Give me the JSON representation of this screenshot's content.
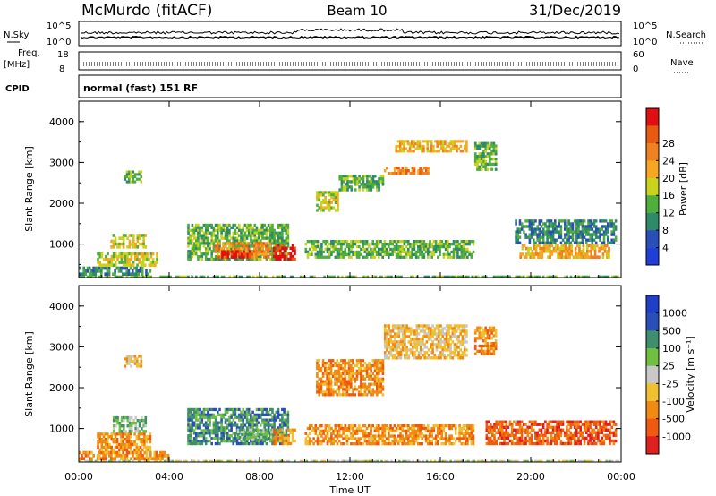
{
  "header": {
    "station": "McMurdo (fitACF)",
    "beam": "Beam 10",
    "date": "31/Dec/2019"
  },
  "strips": {
    "nsky": {
      "left_label": "N.Sky",
      "right_label": "N.Search",
      "ticks_left": [
        "10^5",
        "10^0"
      ],
      "ticks_right": [
        "10^5",
        "10^0"
      ]
    },
    "freq": {
      "left_label_1": "Freq.",
      "left_label_2": "[MHz]",
      "ticks_left": [
        "18",
        "8"
      ],
      "ticks_right": [
        "60",
        "0"
      ],
      "right_label": "Nave"
    },
    "cpid": {
      "left_label": "CPID",
      "text": "normal (fast) 151 RF"
    }
  },
  "x_axis": {
    "label": "Time UT",
    "ticks": [
      "00:00",
      "04:00",
      "08:00",
      "12:00",
      "16:00",
      "20:00",
      "00:00"
    ]
  },
  "colors": {
    "power": [
      "#1f3fd8",
      "#2b4fb8",
      "#2f8a6a",
      "#4fae3c",
      "#c9d31e",
      "#f5a623",
      "#f08020",
      "#e85a10",
      "#e01010"
    ],
    "velocity": [
      "#e02020",
      "#f05a10",
      "#f08a10",
      "#f0c030",
      "#c8c8c8",
      "#6fbf40",
      "#3f8f6f",
      "#2b4fb8",
      "#1f3fc8"
    ]
  },
  "chart_data": [
    {
      "type": "heatmap",
      "panel": "power",
      "ylabel": "Slant Range [km]",
      "yticks": [
        "1000",
        "2000",
        "3000",
        "4000"
      ],
      "ylim": [
        180,
        4500
      ],
      "xlim": [
        0,
        24
      ],
      "colorbar": {
        "label": "Power [dB]",
        "ticks": [
          "4",
          "8",
          "12",
          "16",
          "20",
          "24",
          "28"
        ]
      },
      "blobs": [
        {
          "t0": 0.0,
          "t1": 24.0,
          "r0": 190,
          "r1": 230,
          "v": 3
        },
        {
          "t0": 0.0,
          "t1": 3.2,
          "r0": 230,
          "r1": 450,
          "v": 2
        },
        {
          "t0": 0.8,
          "t1": 3.5,
          "r0": 450,
          "r1": 800,
          "v": 4
        },
        {
          "t0": 1.4,
          "t1": 3.0,
          "r0": 900,
          "r1": 1250,
          "v": 4
        },
        {
          "t0": 2.0,
          "t1": 2.8,
          "r0": 2500,
          "r1": 2800,
          "v": 3
        },
        {
          "t0": 4.8,
          "t1": 9.3,
          "r0": 600,
          "r1": 1500,
          "v": 3
        },
        {
          "t0": 6.0,
          "t1": 8.5,
          "r0": 650,
          "r1": 1050,
          "v": 6
        },
        {
          "t0": 6.3,
          "t1": 7.6,
          "r0": 650,
          "r1": 850,
          "v": 8
        },
        {
          "t0": 8.6,
          "t1": 9.6,
          "r0": 600,
          "r1": 1000,
          "v": 8
        },
        {
          "t0": 10.5,
          "t1": 11.5,
          "r0": 1800,
          "r1": 2300,
          "v": 4
        },
        {
          "t0": 11.5,
          "t1": 13.5,
          "r0": 2300,
          "r1": 2700,
          "v": 3
        },
        {
          "t0": 13.5,
          "t1": 15.5,
          "r0": 2700,
          "r1": 2900,
          "v": 6
        },
        {
          "t0": 14.0,
          "t1": 17.2,
          "r0": 3250,
          "r1": 3550,
          "v": 5
        },
        {
          "t0": 10.0,
          "t1": 17.5,
          "r0": 650,
          "r1": 1100,
          "v": 3
        },
        {
          "t0": 17.5,
          "t1": 18.5,
          "r0": 2800,
          "r1": 3500,
          "v": 3
        },
        {
          "t0": 19.5,
          "t1": 23.5,
          "r0": 650,
          "r1": 1000,
          "v": 5
        },
        {
          "t0": 19.3,
          "t1": 23.8,
          "r0": 1000,
          "r1": 1600,
          "v": 2
        }
      ]
    },
    {
      "type": "heatmap",
      "panel": "velocity",
      "ylabel": "Slant Range [km]",
      "yticks": [
        "1000",
        "2000",
        "3000",
        "4000"
      ],
      "ylim": [
        180,
        4500
      ],
      "xlim": [
        0,
        24
      ],
      "colorbar": {
        "label": "Velocity [m s⁻¹]",
        "ticks": [
          "1000",
          "500",
          "100",
          "25",
          "-25",
          "-100",
          "-500",
          "-1000"
        ]
      },
      "blobs": [
        {
          "t0": 0.0,
          "t1": 24.0,
          "r0": 190,
          "r1": 230,
          "v": 4
        },
        {
          "t0": 0.0,
          "t1": 4.0,
          "r0": 230,
          "r1": 450,
          "v": 2
        },
        {
          "t0": 0.8,
          "t1": 3.2,
          "r0": 450,
          "r1": 900,
          "v": 2
        },
        {
          "t0": 1.5,
          "t1": 3.0,
          "r0": 900,
          "r1": 1300,
          "v": 5
        },
        {
          "t0": 2.0,
          "t1": 2.8,
          "r0": 2500,
          "r1": 2800,
          "v": 3
        },
        {
          "t0": 4.8,
          "t1": 9.3,
          "r0": 600,
          "r1": 1500,
          "v": 6
        },
        {
          "t0": 7.0,
          "t1": 9.0,
          "r0": 700,
          "r1": 1000,
          "v": 5
        },
        {
          "t0": 8.6,
          "t1": 9.6,
          "r0": 600,
          "r1": 1000,
          "v": 2
        },
        {
          "t0": 10.5,
          "t1": 13.5,
          "r0": 1800,
          "r1": 2700,
          "v": 2
        },
        {
          "t0": 13.5,
          "t1": 17.2,
          "r0": 2700,
          "r1": 3550,
          "v": 3
        },
        {
          "t0": 10.0,
          "t1": 17.5,
          "r0": 600,
          "r1": 1100,
          "v": 2
        },
        {
          "t0": 17.5,
          "t1": 18.5,
          "r0": 2800,
          "r1": 3500,
          "v": 2
        },
        {
          "t0": 18.0,
          "t1": 23.8,
          "r0": 600,
          "r1": 1200,
          "v": 1
        }
      ]
    }
  ]
}
